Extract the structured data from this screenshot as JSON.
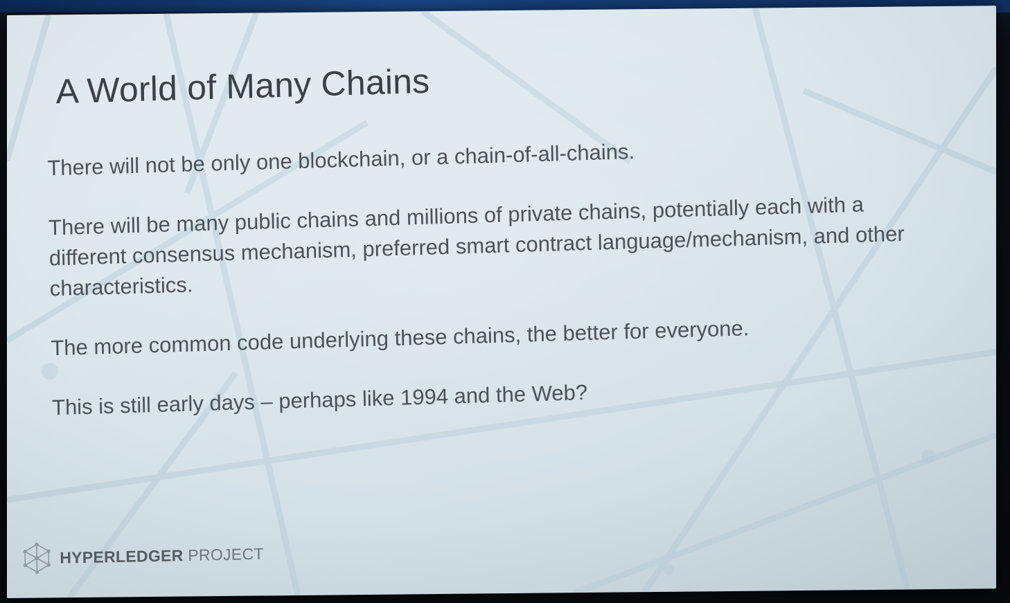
{
  "slide": {
    "title": "A World of Many Chains",
    "bullets": [
      "There will not be only one blockchain, or a chain-of-all-chains.",
      "There will be many public chains and millions of private chains, potentially each with a different consensus mechanism, preferred smart contract language/mechanism, and other characteristics.",
      "The more common code underlying these chains, the better for everyone.",
      "This is still early days – perhaps like 1994 and the Web?"
    ],
    "footer": {
      "brand_strong": "HYPERLEDGER",
      "brand_light": " PROJECT",
      "logo_icon": "hyperledger-logo-icon"
    }
  },
  "colors": {
    "slide_background": "#dce7ed",
    "title_text": "#3b4046",
    "body_text": "#4c5258",
    "background_lines": "#b9cfdc"
  }
}
